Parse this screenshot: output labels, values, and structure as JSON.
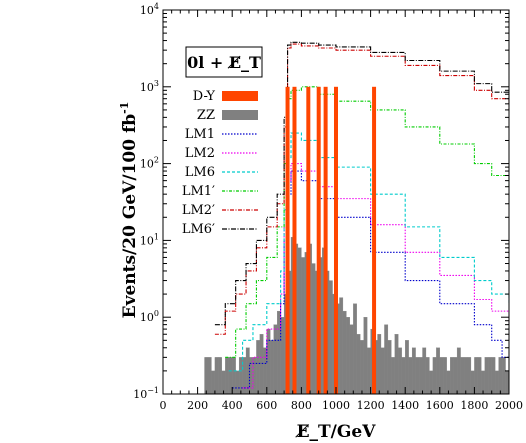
{
  "chart_data": {
    "type": "histogram",
    "title": "",
    "xlabel": "E̸_T/GeV",
    "ylabel": "Events/20 GeV/100 fb",
    "ylabel_sup": "-1",
    "xlim": [
      0,
      2000
    ],
    "ylim": [
      0.1,
      10000
    ],
    "yscale": "log",
    "grid": false,
    "x_ticks": [
      "0",
      "200",
      "400",
      "600",
      "800",
      "1000",
      "1200",
      "1400",
      "1600",
      "1800",
      "2000"
    ],
    "y_ticks": [
      {
        "value": 0.1,
        "base": "10",
        "exp": "−1"
      },
      {
        "value": 1,
        "base": "10",
        "exp": "0"
      },
      {
        "value": 10,
        "base": "10",
        "exp": "1"
      },
      {
        "value": 100,
        "base": "10",
        "exp": "2"
      },
      {
        "value": 1000,
        "base": "10",
        "exp": "3"
      },
      {
        "value": 10000,
        "base": "10",
        "exp": "4"
      }
    ],
    "box_label": "0l + E̸_T",
    "legend_placement": "upper-left",
    "series": [
      {
        "name": "D-Y",
        "kind": "spikes",
        "color": "#ff4500",
        "x": [
          720,
          760,
          840,
          900,
          940,
          1000,
          1220
        ],
        "values": [
          1000,
          1000,
          1000,
          1000,
          1000,
          1000,
          1000
        ]
      },
      {
        "name": "ZZ",
        "kind": "filled-histogram",
        "color": "#808080",
        "x": [
          240,
          260,
          280,
          300,
          320,
          340,
          360,
          380,
          400,
          420,
          440,
          460,
          480,
          500,
          520,
          540,
          560,
          580,
          600,
          620,
          640,
          660,
          680,
          700,
          720,
          740,
          760,
          780,
          800,
          820,
          840,
          860,
          880,
          900,
          920,
          940,
          960,
          980,
          1000,
          1020,
          1040,
          1060,
          1080,
          1100,
          1120,
          1140,
          1160,
          1180,
          1200,
          1220,
          1240,
          1260,
          1280,
          1300,
          1320,
          1340,
          1360,
          1380,
          1400,
          1420,
          1440,
          1460,
          1480,
          1500,
          1520,
          1540,
          1560,
          1580,
          1600,
          1620,
          1640,
          1660,
          1680,
          1700,
          1720,
          1740,
          1760,
          1780,
          1800,
          1820,
          1840,
          1860,
          1880,
          1900,
          1920,
          1940,
          1960,
          1980
        ],
        "values": [
          0.3,
          0.3,
          0.2,
          0.3,
          0.3,
          0.2,
          0.3,
          0.3,
          0.3,
          0.2,
          0.3,
          0.3,
          0.4,
          0.3,
          0.3,
          0.5,
          0.6,
          0.4,
          0.7,
          0.5,
          0.8,
          1.2,
          1.0,
          2.0,
          4.0,
          11,
          9,
          8,
          6,
          7,
          9,
          5,
          4,
          6,
          8,
          4,
          3,
          2,
          1.5,
          1.8,
          1.2,
          1.0,
          0.8,
          1.5,
          0.6,
          0.5,
          1.0,
          0.4,
          0.7,
          0.5,
          0.6,
          0.4,
          0.8,
          0.5,
          0.3,
          0.6,
          0.4,
          0.3,
          0.5,
          0.3,
          0.4,
          0.3,
          0.3,
          0.4,
          0.3,
          0.2,
          0.3,
          0.4,
          0.3,
          0.3,
          0.2,
          0.3,
          0.3,
          0.4,
          0.3,
          0.3,
          0.3,
          0.2,
          0.3,
          0.3,
          0.2,
          0.3,
          0.3,
          0.3,
          0.2,
          0.3,
          0.3,
          0.2
        ]
      },
      {
        "name": "LM1",
        "kind": "step-line",
        "color": "#0000cc",
        "dash": "1.5,1.5",
        "x": [
          400,
          500,
          600,
          680,
          700,
          720,
          740,
          800,
          900,
          1000,
          1200,
          1400,
          1600,
          1800,
          1900,
          1960,
          2000
        ],
        "values": [
          0.12,
          0.25,
          0.5,
          1.5,
          10,
          40,
          80,
          60,
          35,
          20,
          7,
          3,
          1.5,
          0.8,
          0.5,
          0.3,
          0.3
        ]
      },
      {
        "name": "LM2",
        "kind": "step-line",
        "color": "#ee00ee",
        "dash": "1.5,1.5",
        "x": [
          460,
          520,
          600,
          680,
          700,
          720,
          740,
          800,
          900,
          1000,
          1200,
          1400,
          1600,
          1800,
          1900,
          2000
        ],
        "values": [
          0.12,
          0.3,
          0.7,
          2,
          15,
          60,
          100,
          80,
          50,
          35,
          16,
          7,
          3.5,
          1.7,
          1.2,
          0.8
        ]
      },
      {
        "name": "LM6",
        "kind": "step-line",
        "color": "#00cccc",
        "dash": "3,2",
        "x": [
          380,
          460,
          520,
          600,
          680,
          700,
          720,
          740,
          800,
          900,
          1000,
          1200,
          1400,
          1600,
          1800,
          1900,
          2000
        ],
        "values": [
          0.2,
          0.5,
          0.8,
          1.5,
          4,
          25,
          120,
          250,
          200,
          120,
          90,
          40,
          15,
          6,
          3,
          2,
          1.5
        ]
      },
      {
        "name": "LM1′",
        "kind": "step-line",
        "color": "#00cc00",
        "dash": "3,1.5,1,1.5",
        "x": [
          360,
          420,
          480,
          540,
          600,
          660,
          700,
          720,
          740,
          800,
          900,
          1000,
          1200,
          1400,
          1600,
          1800,
          1900,
          2000
        ],
        "values": [
          0.3,
          0.7,
          1.5,
          3,
          6,
          15,
          100,
          700,
          900,
          1000,
          800,
          650,
          500,
          300,
          180,
          100,
          70,
          50
        ]
      },
      {
        "name": "LM2′",
        "kind": "step-line",
        "color": "#cc0000",
        "dash": "4,1.5,1,1.5",
        "x": [
          300,
          360,
          420,
          480,
          540,
          600,
          660,
          700,
          720,
          740,
          800,
          900,
          1000,
          1200,
          1400,
          1600,
          1800,
          1900,
          2000
        ],
        "values": [
          0.6,
          1.2,
          2,
          4,
          8,
          15,
          30,
          300,
          3200,
          3600,
          3400,
          3200,
          3000,
          2500,
          1900,
          1400,
          900,
          700,
          500
        ]
      },
      {
        "name": "LM6′",
        "kind": "step-line",
        "color": "#000000",
        "dash": "5,1.5,1,1.5",
        "x": [
          300,
          360,
          420,
          480,
          540,
          600,
          660,
          700,
          720,
          740,
          800,
          900,
          1000,
          1200,
          1400,
          1600,
          1800,
          1900,
          2000
        ],
        "values": [
          0.8,
          1.5,
          3,
          5,
          10,
          20,
          40,
          400,
          3500,
          3800,
          3700,
          3500,
          3300,
          2800,
          2200,
          1600,
          1100,
          850,
          650
        ]
      }
    ]
  }
}
